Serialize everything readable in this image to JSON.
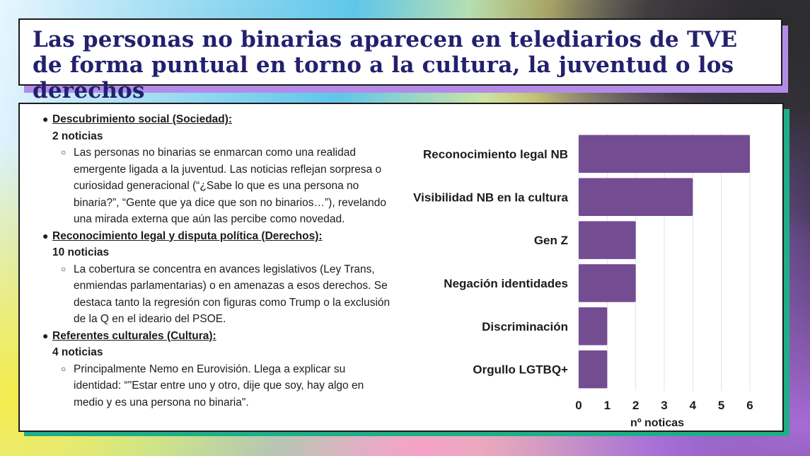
{
  "title": "Las personas no binarias aparecen en telediarios de TVE de forma puntual en torno a la cultura, la juventud o los derechos",
  "bullets": [
    {
      "label": "Descubrimiento social (Sociedad):",
      "count": "2 noticias",
      "detail": " Las personas no binarias se enmarcan como una realidad emergente ligada a la juventud. Las noticias reflejan sorpresa o curiosidad generacional (“¿Sabe lo que es una persona no binaria?”, “Gente que ya dice que son no binarios…”), revelando una mirada externa que aún las percibe como novedad."
    },
    {
      "label": "Reconocimiento legal y disputa política (Derechos):",
      "count": "10 noticias",
      "detail": "La cobertura se concentra en avances legislativos (Ley Trans, enmiendas parlamentarias) o en amenazas a esos derechos. Se destaca tanto la regresión con figuras como Trump o la exclusión de la Q en el ideario del PSOE."
    },
    {
      "label": "Referentes culturales (Cultura):",
      "count": "4 noticias",
      "detail": "Principalmente Nemo en Eurovisión. Llega a explicar su identidad: “\"Estar entre uno y otro, dije que soy, hay algo en medio y es una persona no binaria\"."
    }
  ],
  "chart_data": {
    "type": "bar",
    "orientation": "horizontal",
    "categories": [
      "Reconocimiento legal NB",
      "Visibilidad NB en la cultura",
      "Gen Z",
      "Negación identidades",
      "Discriminación",
      "Orgullo LGTBQ+"
    ],
    "values": [
      6,
      4,
      2,
      2,
      1,
      1
    ],
    "xlabel": "nº noticas",
    "xlim": [
      0,
      6
    ],
    "xticks": [
      "0",
      "1",
      "2",
      "3",
      "4",
      "5",
      "6"
    ],
    "grid": true,
    "bar_color": "#744c92"
  }
}
